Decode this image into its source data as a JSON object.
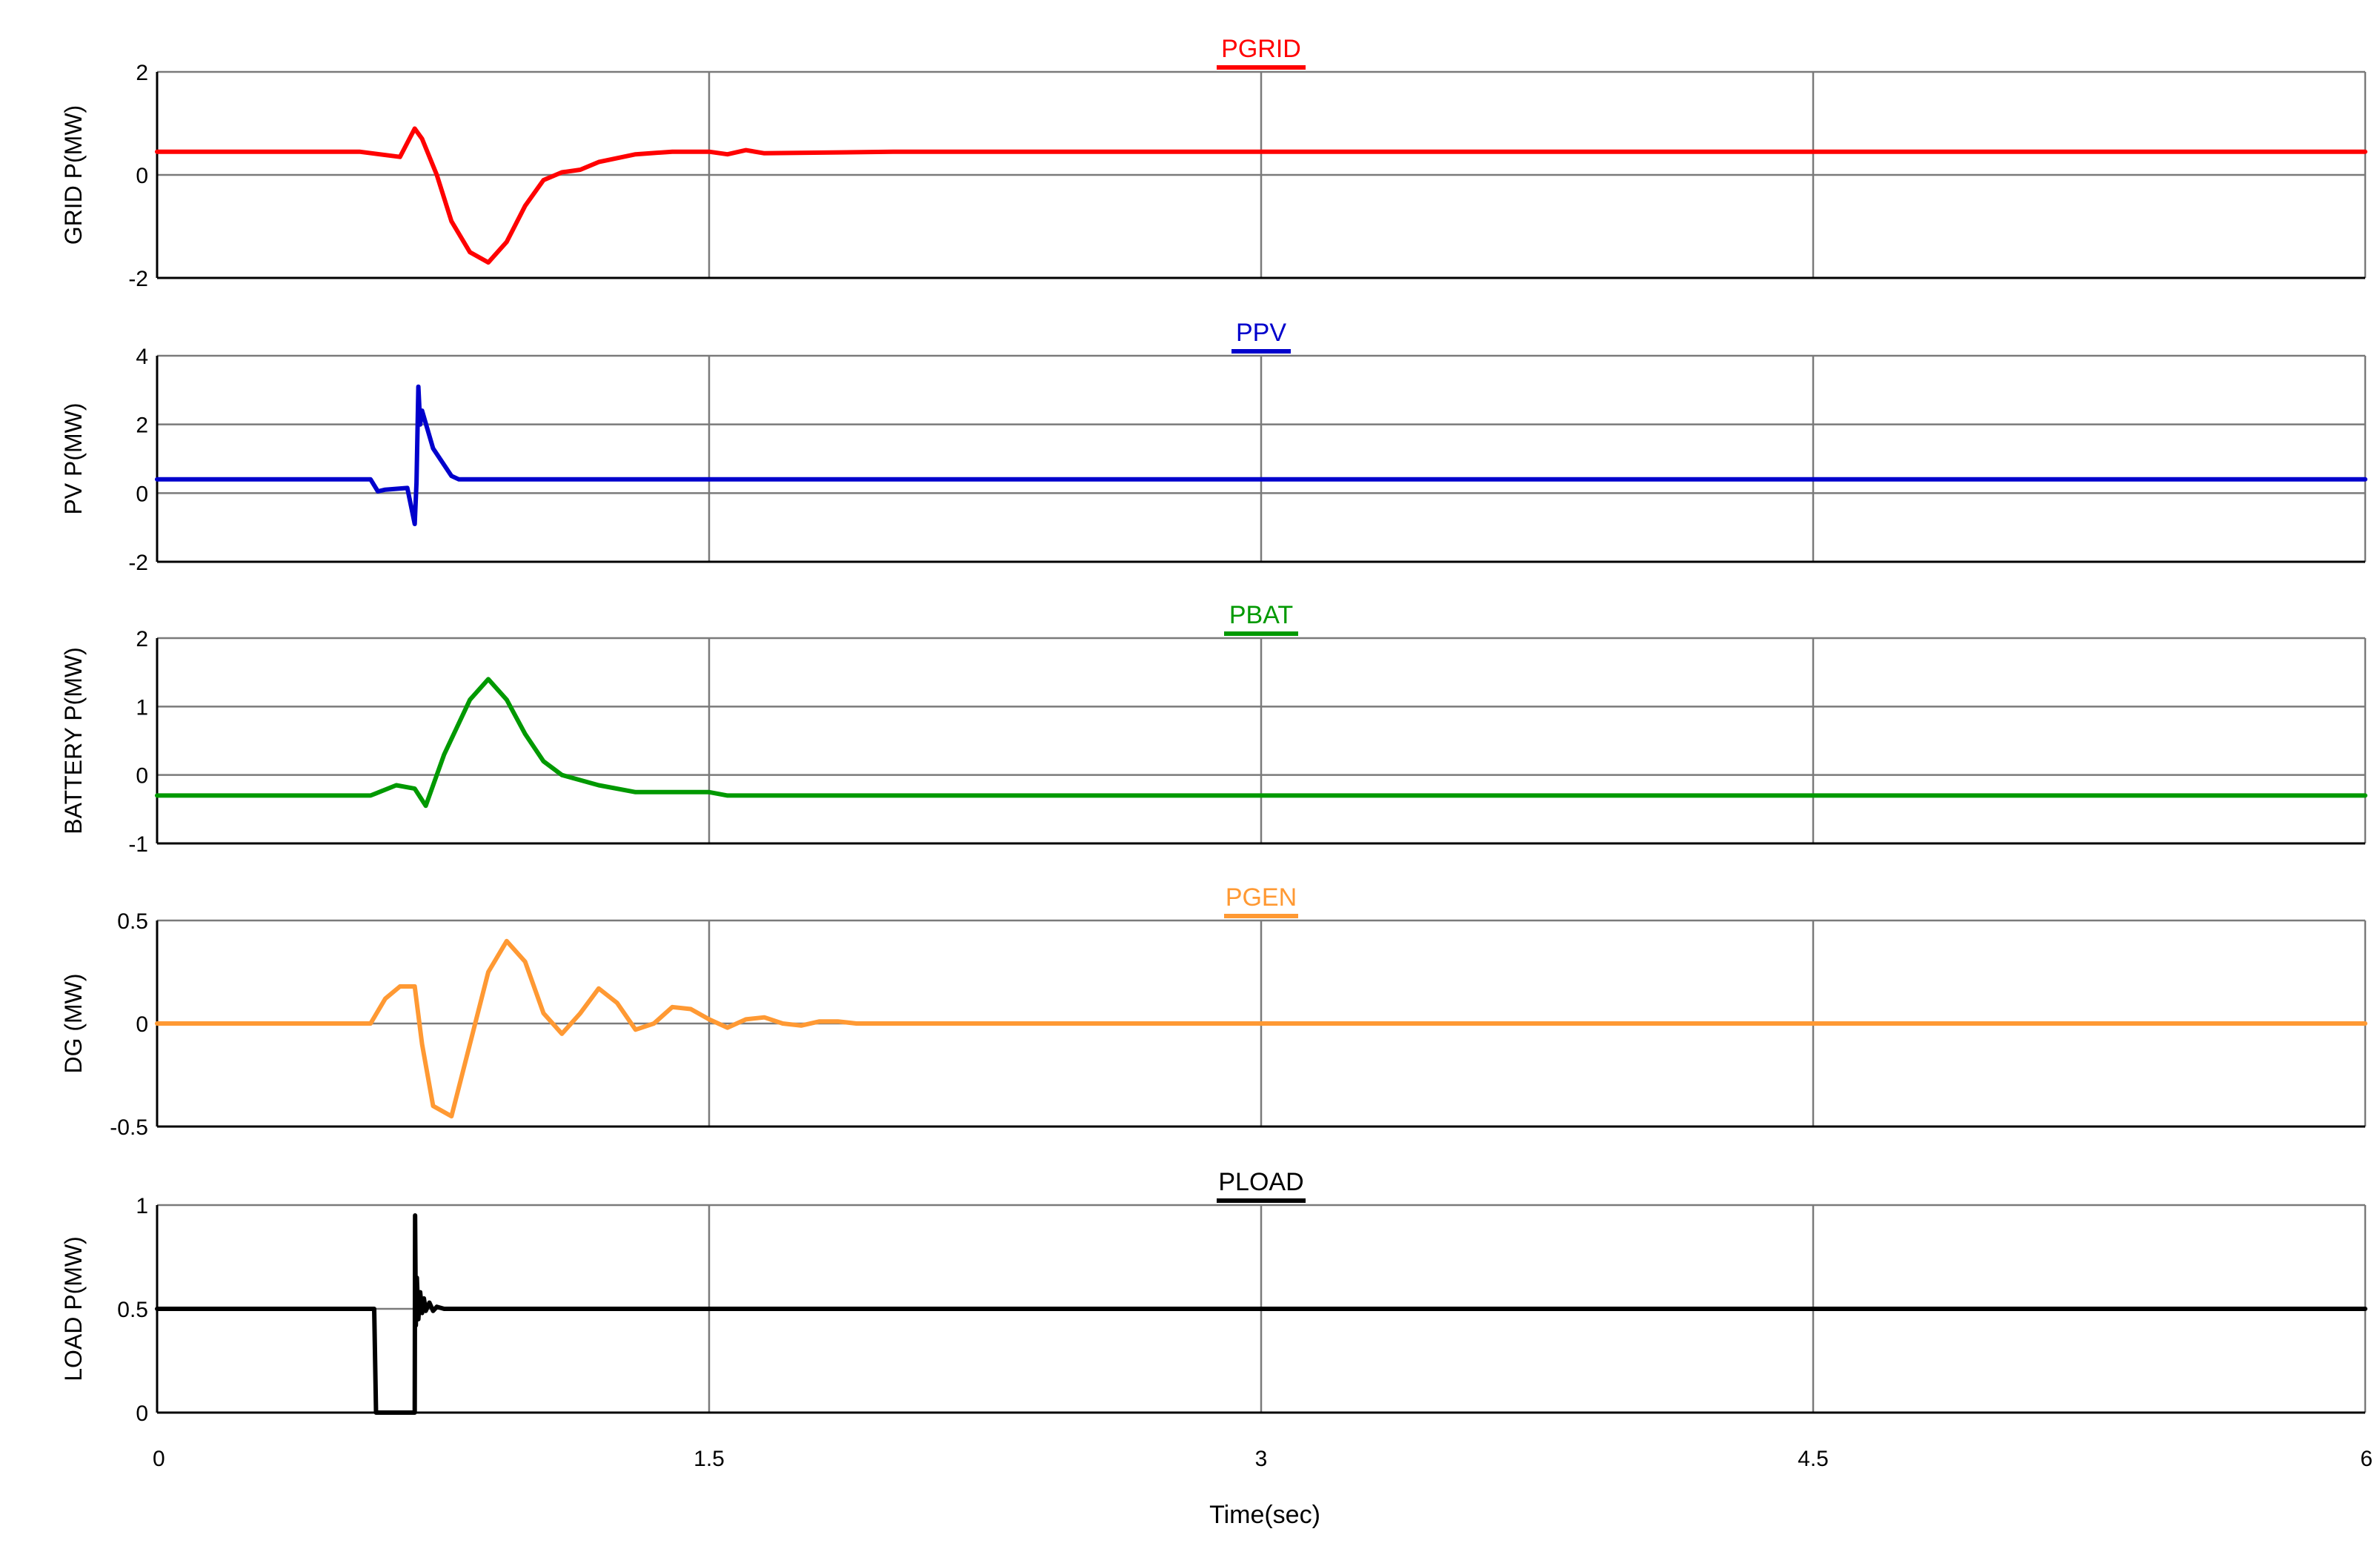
{
  "chart_data": [
    {
      "type": "line",
      "title": "PGRID",
      "ylabel": "GRID P(MW)",
      "color": "#ff0000",
      "ylim": [
        -2,
        2
      ],
      "yticks": [
        -2,
        0,
        2
      ],
      "ytick_labels": [
        "-2",
        "0",
        "2"
      ],
      "x": [
        0,
        0.55,
        0.66,
        0.7,
        0.72,
        0.76,
        0.8,
        0.85,
        0.9,
        0.95,
        1.0,
        1.05,
        1.1,
        1.15,
        1.2,
        1.3,
        1.4,
        1.5,
        1.55,
        1.6,
        1.65,
        2.0,
        6.0
      ],
      "y": [
        0.45,
        0.45,
        0.35,
        0.9,
        0.7,
        0.0,
        -0.9,
        -1.5,
        -1.7,
        -1.3,
        -0.6,
        -0.1,
        0.05,
        0.1,
        0.25,
        0.4,
        0.45,
        0.45,
        0.4,
        0.48,
        0.42,
        0.45,
        0.45
      ]
    },
    {
      "type": "line",
      "title": "PPV",
      "ylabel": "PV P(MW)",
      "color": "#0000cc",
      "ylim": [
        -2,
        4
      ],
      "yticks": [
        -2,
        0,
        2,
        4
      ],
      "ytick_labels": [
        "-2",
        "0",
        "2",
        "4"
      ],
      "x": [
        0,
        0.58,
        0.6,
        0.62,
        0.68,
        0.7,
        0.705,
        0.71,
        0.715,
        0.72,
        0.75,
        0.8,
        0.82,
        6.0
      ],
      "y": [
        0.4,
        0.4,
        0.05,
        0.1,
        0.15,
        -0.9,
        0.3,
        3.1,
        2.0,
        2.4,
        1.3,
        0.5,
        0.4,
        0.4
      ]
    },
    {
      "type": "line",
      "title": "PBAT",
      "ylabel": "BATTERY P(MW)",
      "color": "#009900",
      "ylim": [
        -1,
        2
      ],
      "yticks": [
        -1,
        0,
        1,
        2
      ],
      "ytick_labels": [
        "-1",
        "0",
        "1",
        "2"
      ],
      "x": [
        0,
        0.58,
        0.65,
        0.7,
        0.73,
        0.78,
        0.85,
        0.9,
        0.95,
        1.0,
        1.05,
        1.1,
        1.2,
        1.3,
        1.5,
        1.55,
        6.0
      ],
      "y": [
        -0.3,
        -0.3,
        -0.15,
        -0.2,
        -0.45,
        0.3,
        1.1,
        1.4,
        1.1,
        0.6,
        0.2,
        0.0,
        -0.15,
        -0.25,
        -0.25,
        -0.3,
        -0.3
      ]
    },
    {
      "type": "line",
      "title": "PGEN",
      "ylabel": "DG (MW)",
      "color": "#ff9933",
      "ylim": [
        -0.5,
        0.5
      ],
      "yticks": [
        -0.5,
        0,
        0.5
      ],
      "ytick_labels": [
        "-0.5",
        "0",
        "0.5"
      ],
      "x": [
        0,
        0.58,
        0.62,
        0.66,
        0.7,
        0.72,
        0.75,
        0.8,
        0.85,
        0.9,
        0.95,
        1.0,
        1.05,
        1.1,
        1.15,
        1.2,
        1.25,
        1.3,
        1.35,
        1.4,
        1.45,
        1.5,
        1.55,
        1.6,
        1.65,
        1.7,
        1.75,
        1.8,
        1.85,
        1.9,
        2.0,
        6.0
      ],
      "y": [
        0.0,
        0.0,
        0.12,
        0.18,
        0.18,
        -0.1,
        -0.4,
        -0.45,
        -0.1,
        0.25,
        0.4,
        0.3,
        0.05,
        -0.05,
        0.05,
        0.17,
        0.1,
        -0.03,
        0.0,
        0.08,
        0.07,
        0.02,
        -0.02,
        0.02,
        0.03,
        0.0,
        -0.01,
        0.01,
        0.01,
        0.0,
        0.0,
        0.0
      ]
    },
    {
      "type": "line",
      "title": "PLOAD",
      "ylabel": "LOAD P(MW)",
      "color": "#000000",
      "ylim": [
        0,
        1
      ],
      "yticks": [
        0,
        0.5,
        1
      ],
      "ytick_labels": [
        "0",
        "0.5",
        "1"
      ],
      "xlabel": "Time(sec)",
      "xlim": [
        0,
        6
      ],
      "xticks": [
        0,
        1.5,
        3,
        4.5,
        6
      ],
      "xtick_labels": [
        "0",
        "1.5",
        "3",
        "4.5",
        "6"
      ],
      "x": [
        0,
        0.59,
        0.595,
        0.7,
        0.701,
        0.703,
        0.706,
        0.71,
        0.715,
        0.72,
        0.725,
        0.73,
        0.74,
        0.75,
        0.76,
        0.78,
        6.0
      ],
      "y": [
        0.5,
        0.5,
        0.0,
        0.0,
        0.95,
        0.42,
        0.65,
        0.45,
        0.58,
        0.48,
        0.55,
        0.49,
        0.53,
        0.49,
        0.51,
        0.5,
        0.5
      ]
    }
  ]
}
